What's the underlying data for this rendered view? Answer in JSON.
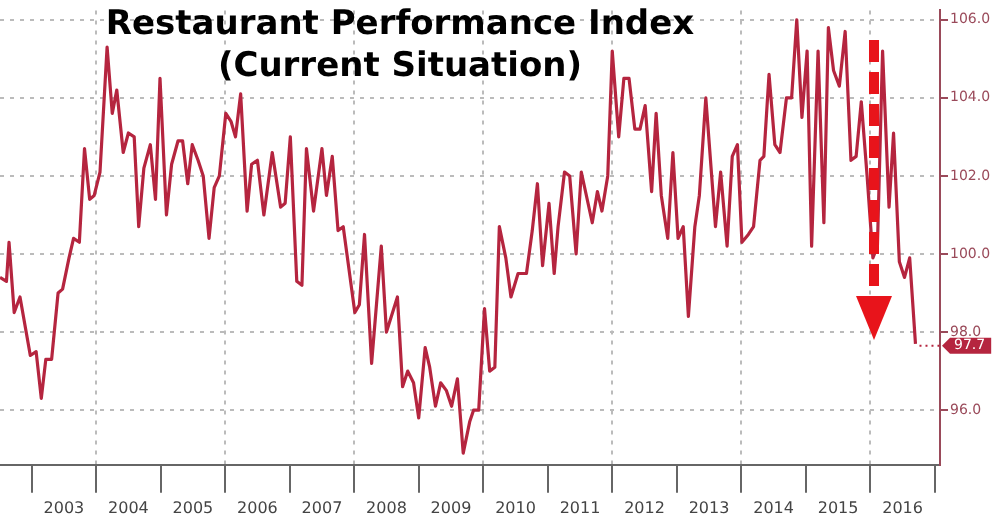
{
  "chart_data": {
    "type": "line",
    "title": "Restaurant Performance Index",
    "subtitle": "(Current Situation)",
    "x": [
      2002.51,
      2002.61,
      2002.65,
      2002.73,
      2002.82,
      2002.98,
      2003.07,
      2003.15,
      2003.22,
      2003.31,
      2003.41,
      2003.48,
      2003.58,
      2003.65,
      2003.74,
      2003.82,
      2003.9,
      2003.97,
      2004.06,
      2004.17,
      2004.25,
      2004.32,
      2004.42,
      2004.5,
      2004.59,
      2004.66,
      2004.74,
      2004.84,
      2004.92,
      2004.99,
      2005.09,
      2005.17,
      2005.27,
      2005.34,
      2005.42,
      2005.49,
      2005.58,
      2005.66,
      2005.75,
      2005.83,
      2005.91,
      2006.01,
      2006.09,
      2006.16,
      2006.24,
      2006.34,
      2006.41,
      2006.5,
      2006.6,
      2006.73,
      2006.86,
      2006.93,
      2007.01,
      2007.11,
      2007.19,
      2007.26,
      2007.37,
      2007.5,
      2007.57,
      2007.66,
      2007.75,
      2007.83,
      2008.01,
      2008.08,
      2008.16,
      2008.27,
      2008.42,
      2008.5,
      2008.67,
      2008.75,
      2008.83,
      2008.92,
      2009.0,
      2009.1,
      2009.17,
      2009.26,
      2009.34,
      2009.43,
      2009.51,
      2009.6,
      2009.69,
      2009.79,
      2009.85,
      2009.93,
      2010.02,
      2010.1,
      2010.18,
      2010.25,
      2010.35,
      2010.43,
      2010.54,
      2010.67,
      2010.76,
      2010.84,
      2010.92,
      2011.02,
      2011.1,
      2011.16,
      2011.26,
      2011.34,
      2011.44,
      2011.52,
      2011.69,
      2011.77,
      2011.84,
      2011.93,
      2012.0,
      2012.1,
      2012.18,
      2012.26,
      2012.35,
      2012.43,
      2012.51,
      2012.61,
      2012.68,
      2012.76,
      2012.86,
      2012.94,
      2013.02,
      2013.1,
      2013.18,
      2013.28,
      2013.35,
      2013.45,
      2013.6,
      2013.68,
      2013.78,
      2013.86,
      2013.94,
      2014.01,
      2014.11,
      2014.19,
      2014.29,
      2014.35,
      2014.43,
      2014.52,
      2014.6,
      2014.7,
      2014.78,
      2014.86,
      2014.94,
      2015.02,
      2015.09,
      2015.19,
      2015.28,
      2015.35,
      2015.43,
      2015.52,
      2015.61,
      2015.7,
      2015.78,
      2015.86,
      2015.95,
      2016.04,
      2016.11,
      2016.19,
      2016.29,
      2016.36,
      2016.45,
      2016.53,
      2016.61,
      2016.7
    ],
    "series": [
      {
        "color": "#b5253f",
        "values": [
          99.4,
          99.3,
          100.3,
          98.5,
          98.9,
          97.4,
          97.5,
          96.3,
          97.3,
          97.3,
          99.0,
          99.1,
          99.9,
          100.4,
          100.3,
          102.7,
          101.4,
          101.5,
          102.1,
          105.3,
          103.6,
          104.2,
          102.6,
          103.1,
          103.0,
          100.7,
          102.2,
          102.8,
          101.4,
          104.5,
          101.0,
          102.3,
          102.9,
          102.9,
          101.8,
          102.8,
          102.4,
          102.0,
          100.4,
          101.7,
          102.0,
          103.6,
          103.4,
          103.0,
          104.1,
          101.1,
          102.3,
          102.4,
          101.0,
          102.6,
          101.2,
          101.3,
          103.0,
          99.3,
          99.2,
          102.7,
          101.1,
          102.7,
          101.5,
          102.5,
          100.6,
          100.7,
          98.5,
          98.7,
          100.5,
          97.2,
          100.2,
          98.0,
          98.9,
          96.6,
          97.0,
          96.7,
          95.8,
          97.6,
          97.1,
          96.1,
          96.7,
          96.5,
          96.1,
          96.8,
          94.9,
          95.7,
          96.0,
          96.0,
          98.6,
          97.0,
          97.1,
          100.7,
          99.9,
          98.9,
          99.5,
          99.5,
          100.6,
          101.8,
          99.7,
          101.3,
          99.5,
          100.7,
          102.1,
          102.0,
          100.0,
          102.1,
          100.8,
          101.6,
          101.1,
          102.0,
          105.2,
          103.0,
          104.5,
          104.5,
          103.2,
          103.2,
          103.8,
          101.6,
          103.6,
          101.5,
          100.4,
          102.6,
          100.4,
          100.7,
          98.4,
          100.7,
          101.5,
          104.0,
          100.7,
          102.1,
          100.2,
          102.5,
          102.8,
          100.3,
          100.5,
          100.7,
          102.4,
          102.5,
          104.6,
          102.8,
          102.6,
          104.0,
          104.0,
          106.0,
          103.5,
          105.2,
          100.2,
          105.2,
          100.8,
          105.8,
          104.7,
          104.3,
          105.7,
          102.4,
          102.5,
          103.9,
          102.0,
          99.9,
          100.2,
          105.2,
          101.2,
          103.1,
          99.8,
          99.4,
          99.9,
          97.7
        ]
      }
    ],
    "xlim": [
      2002.51,
      2017.08
    ],
    "xticks": [
      {
        "value": 2003,
        "label": null
      },
      {
        "value": 2003.5,
        "label": "2003"
      },
      {
        "value": 2004,
        "label": null
      },
      {
        "value": 2004.5,
        "label": "2004"
      },
      {
        "value": 2005,
        "label": null
      },
      {
        "value": 2005.5,
        "label": "2005"
      },
      {
        "value": 2006,
        "label": null
      },
      {
        "value": 2006.5,
        "label": "2006"
      },
      {
        "value": 2007,
        "label": null
      },
      {
        "value": 2007.5,
        "label": "2007"
      },
      {
        "value": 2008,
        "label": null
      },
      {
        "value": 2008.5,
        "label": "2008"
      },
      {
        "value": 2009,
        "label": null
      },
      {
        "value": 2009.5,
        "label": "2009"
      },
      {
        "value": 2010,
        "label": null
      },
      {
        "value": 2010.5,
        "label": "2010"
      },
      {
        "value": 2011,
        "label": null
      },
      {
        "value": 2011.5,
        "label": "2011"
      },
      {
        "value": 2012,
        "label": null
      },
      {
        "value": 2012.5,
        "label": "2012"
      },
      {
        "value": 2013,
        "label": null
      },
      {
        "value": 2013.5,
        "label": "2013"
      },
      {
        "value": 2014,
        "label": null
      },
      {
        "value": 2014.5,
        "label": "2014"
      },
      {
        "value": 2015,
        "label": null
      },
      {
        "value": 2015.5,
        "label": "2015"
      },
      {
        "value": 2016,
        "label": null
      },
      {
        "value": 2016.5,
        "label": "2016"
      },
      {
        "value": 2017,
        "label": null
      }
    ],
    "ylim": [
      94.6,
      106.24
    ],
    "yticks": [
      {
        "value": 96,
        "label": "96.0"
      },
      {
        "value": 98,
        "label": "98.0"
      },
      {
        "value": 100,
        "label": "100.0"
      },
      {
        "value": 102,
        "label": "102.0"
      },
      {
        "value": 104,
        "label": "104.0"
      },
      {
        "value": 106,
        "label": "106.0"
      }
    ],
    "annotations": [
      {
        "text": "97.7",
        "x": 2016.7,
        "y": 97.7
      }
    ],
    "grid": true,
    "legend": false,
    "marker": "none",
    "line_style": "solid"
  }
}
